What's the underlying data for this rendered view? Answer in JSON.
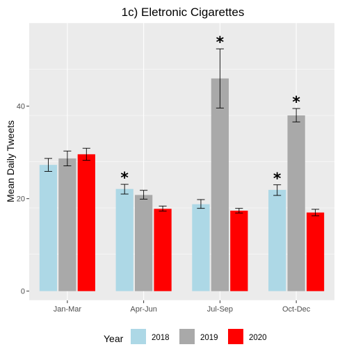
{
  "chart_data": {
    "type": "bar",
    "title": "1c) Eletronic Cigarettes",
    "xlabel": "",
    "ylabel": "Mean Daily Tweets",
    "ylim": [
      -2,
      58
    ],
    "y_ticks": [
      0,
      20,
      40
    ],
    "categories": [
      "Jan-Mar",
      "Apr-Jun",
      "Jul-Sep",
      "Oct-Dec"
    ],
    "legend_title": "Year",
    "legend_position": "bottom",
    "grid": true,
    "series": [
      {
        "name": "2018",
        "color": "#add8e6",
        "values": [
          27.3,
          22.1,
          18.8,
          21.9
        ],
        "error_low": [
          25.9,
          21.0,
          17.9,
          20.7
        ],
        "error_high": [
          28.7,
          23.1,
          19.8,
          23.0
        ],
        "significant": [
          false,
          true,
          false,
          true
        ]
      },
      {
        "name": "2019",
        "color": "#a9a9a9",
        "values": [
          28.7,
          20.8,
          46.0,
          38.0
        ],
        "error_low": [
          27.1,
          19.9,
          39.6,
          36.6
        ],
        "error_high": [
          30.3,
          21.8,
          52.4,
          39.5
        ],
        "significant": [
          false,
          false,
          true,
          true
        ]
      },
      {
        "name": "2020",
        "color": "#ff0000",
        "values": [
          29.6,
          17.8,
          17.4,
          17.0
        ],
        "error_low": [
          28.3,
          17.3,
          16.9,
          16.3
        ],
        "error_high": [
          30.9,
          18.4,
          17.9,
          17.7
        ],
        "significant": [
          false,
          false,
          false,
          false
        ]
      }
    ],
    "significance_marker": "*"
  }
}
